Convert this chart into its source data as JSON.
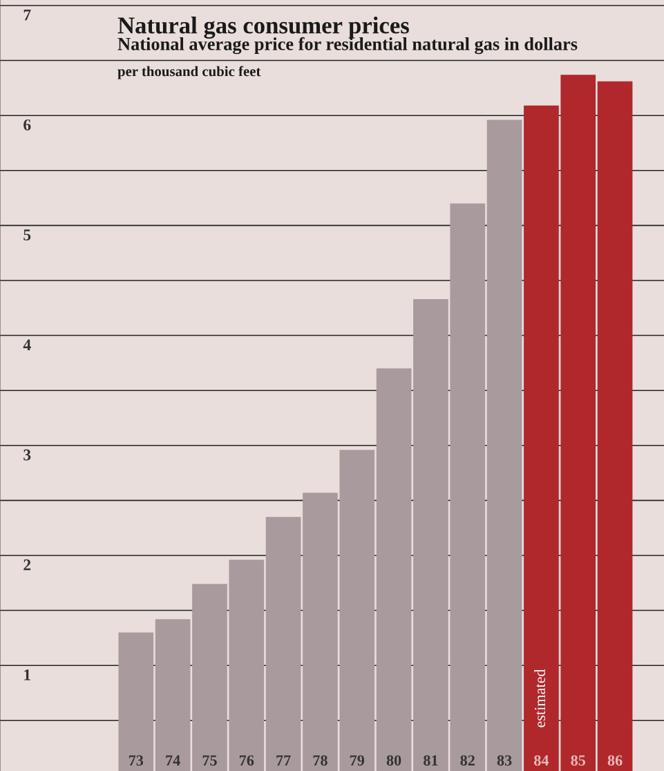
{
  "chart_data": {
    "type": "bar",
    "title": "Natural gas consumer prices",
    "subtitle": "National average price for residential natural gas in dollars",
    "annotations": [
      "per thousand cubic feet",
      "estimated"
    ],
    "categories": [
      "73",
      "74",
      "75",
      "76",
      "77",
      "78",
      "79",
      "80",
      "81",
      "82",
      "83",
      "84",
      "85",
      "86"
    ],
    "values": [
      1.3,
      1.42,
      1.74,
      1.96,
      2.35,
      2.57,
      2.96,
      3.7,
      4.33,
      5.2,
      5.96,
      6.09,
      6.37,
      6.31
    ],
    "colors": [
      "#a99a9d",
      "#a99a9d",
      "#a99a9d",
      "#a99a9d",
      "#a99a9d",
      "#a99a9d",
      "#a99a9d",
      "#a99a9d",
      "#a99a9d",
      "#a99a9d",
      "#a99a9d",
      "#b0282b",
      "#b0282b",
      "#b0282b"
    ],
    "ylim": [
      0.04,
      7.05
    ],
    "yticks": [
      {
        "value": 0.5,
        "label": null
      },
      1,
      {
        "value": 1.5,
        "label": null
      },
      2,
      {
        "value": 2.5,
        "label": null
      },
      3,
      {
        "value": 3.5,
        "label": null
      },
      4,
      {
        "value": 4.5,
        "label": null
      },
      5,
      {
        "value": 5.5,
        "label": null
      },
      6,
      {
        "value": 6.5,
        "label": null
      },
      7
    ],
    "grid": "y"
  }
}
